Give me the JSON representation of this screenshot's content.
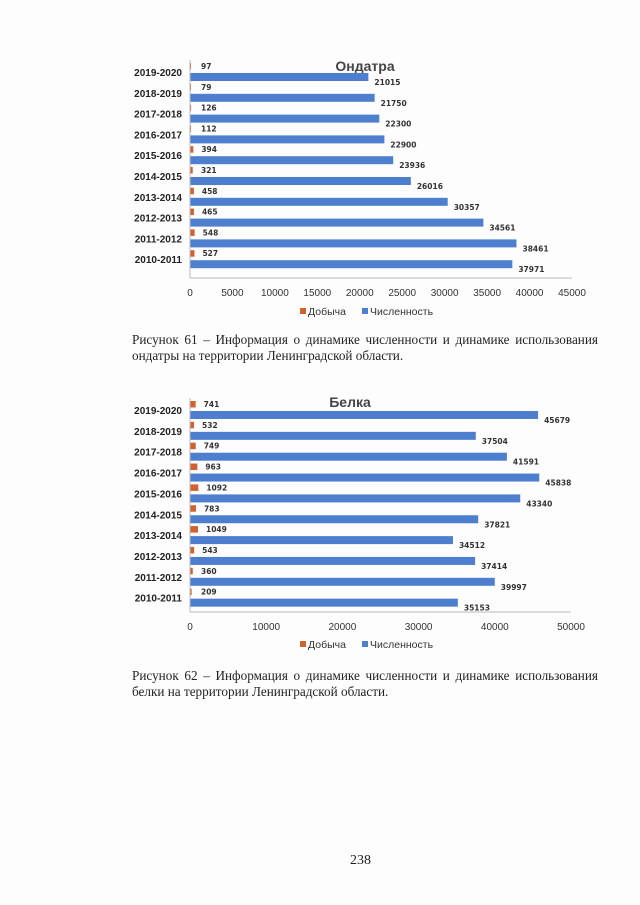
{
  "chart_data": [
    {
      "type": "bar",
      "orientation": "horizontal",
      "title": "Ондатра",
      "categories": [
        "2019-2020",
        "2018-2019",
        "2017-2018",
        "2016-2017",
        "2015-2016",
        "2014-2015",
        "2013-2014",
        "2012-2013",
        "2011-2012",
        "2010-2011"
      ],
      "series": [
        {
          "name": "Добыча",
          "color": "#d0622f",
          "values": [
            97,
            79,
            126,
            112,
            394,
            321,
            458,
            465,
            548,
            527
          ]
        },
        {
          "name": "Численность",
          "color": "#4e7fcf",
          "values": [
            21015,
            21750,
            22300,
            22900,
            23936,
            26016,
            30357,
            34561,
            38461,
            37971
          ]
        }
      ],
      "xlim": [
        0,
        45000
      ],
      "xticks": [
        "0",
        "5000",
        "10000",
        "15000",
        "20000",
        "25000",
        "30000",
        "35000",
        "40000",
        "45000"
      ],
      "grid": false,
      "legend": "bottom"
    },
    {
      "type": "bar",
      "orientation": "horizontal",
      "title": "Белка",
      "categories": [
        "2019-2020",
        "2018-2019",
        "2017-2018",
        "2016-2017",
        "2015-2016",
        "2014-2015",
        "2013-2014",
        "2012-2013",
        "2011-2012",
        "2010-2011"
      ],
      "series": [
        {
          "name": "Добыча",
          "color": "#d0622f",
          "values": [
            741,
            532,
            749,
            963,
            1092,
            783,
            1049,
            543,
            360,
            209
          ]
        },
        {
          "name": "Численность",
          "color": "#4e7fcf",
          "values": [
            45679,
            37504,
            41591,
            45838,
            43340,
            37821,
            34512,
            37414,
            39997,
            35153
          ]
        }
      ],
      "xlim": [
        0,
        50000
      ],
      "xticks": [
        "0",
        "10000",
        "20000",
        "30000",
        "40000",
        "50000"
      ],
      "grid": false,
      "legend": "bottom"
    }
  ],
  "captions": [
    {
      "line1": "Рисунок 61 – Информация о динамике численности и динамике использования",
      "line2": "ондатры на территории Ленинградской области."
    },
    {
      "line1": "Рисунок 62 – Информация о динамике численности и динамике использования",
      "line2": "белки на территории Ленинградской области."
    }
  ],
  "page_number": "238"
}
